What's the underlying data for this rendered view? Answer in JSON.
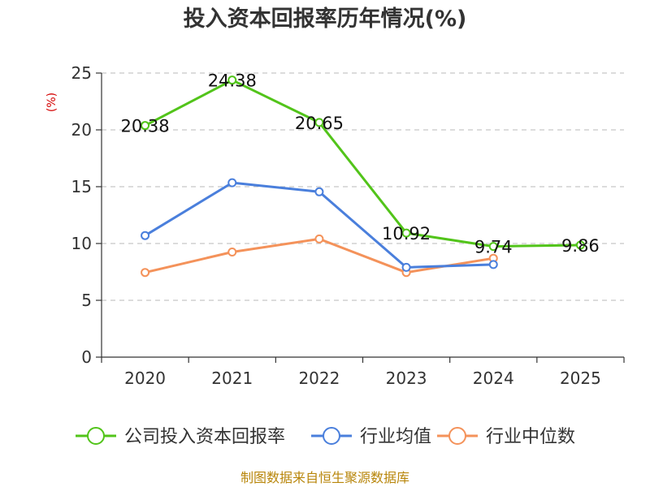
{
  "chart_data": {
    "type": "line",
    "title": "投入资本回报率历年情况(%)",
    "ylabel": "(%)",
    "xlabel": "",
    "categories": [
      "2020",
      "2021",
      "2022",
      "2023",
      "2024",
      "2025"
    ],
    "ylim": [
      0,
      25
    ],
    "yticks": [
      0,
      5,
      10,
      15,
      20,
      25
    ],
    "grid": "horizontal-dashed",
    "legend_position": "bottom",
    "series": [
      {
        "name": "公司投入资本回报率",
        "color": "#52c41a",
        "values": [
          20.38,
          24.38,
          20.65,
          10.92,
          9.74,
          9.86
        ],
        "labels": [
          "20.38",
          "24.38",
          "20.65",
          "10.92",
          "9.74",
          "9.86"
        ]
      },
      {
        "name": "行业均值",
        "color": "#4a7fdc",
        "values": [
          10.7,
          15.35,
          14.55,
          7.9,
          8.15,
          null
        ]
      },
      {
        "name": "行业中位数",
        "color": "#f4925a",
        "values": [
          7.45,
          9.25,
          10.4,
          7.45,
          8.7,
          null
        ]
      }
    ],
    "source": "制图数据来自恒生聚源数据库"
  }
}
